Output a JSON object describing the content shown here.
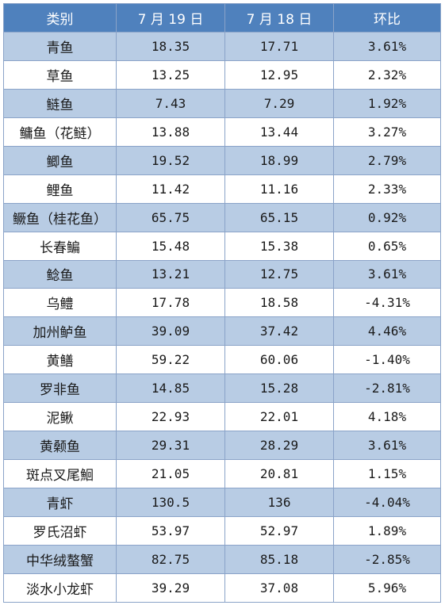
{
  "header": {
    "category": "类别",
    "date1": "7 月 19 日",
    "date2": "7 月 18 日",
    "change": "环比"
  },
  "rows": [
    {
      "name": "青鱼",
      "jul19": "18.35",
      "jul18": "17.71",
      "change": "3.61%"
    },
    {
      "name": "草鱼",
      "jul19": "13.25",
      "jul18": "12.95",
      "change": "2.32%"
    },
    {
      "name": "鲢鱼",
      "jul19": "7.43",
      "jul18": "7.29",
      "change": "1.92%"
    },
    {
      "name": "鳙鱼（花鲢）",
      "jul19": "13.88",
      "jul18": "13.44",
      "change": "3.27%"
    },
    {
      "name": "鲫鱼",
      "jul19": "19.52",
      "jul18": "18.99",
      "change": "2.79%"
    },
    {
      "name": "鲤鱼",
      "jul19": "11.42",
      "jul18": "11.16",
      "change": "2.33%"
    },
    {
      "name": "鳜鱼（桂花鱼）",
      "jul19": "65.75",
      "jul18": "65.15",
      "change": "0.92%"
    },
    {
      "name": "长春鳊",
      "jul19": "15.48",
      "jul18": "15.38",
      "change": "0.65%"
    },
    {
      "name": "鲶鱼",
      "jul19": "13.21",
      "jul18": "12.75",
      "change": "3.61%"
    },
    {
      "name": "乌鳢",
      "jul19": "17.78",
      "jul18": "18.58",
      "change": "-4.31%"
    },
    {
      "name": "加州鲈鱼",
      "jul19": "39.09",
      "jul18": "37.42",
      "change": "4.46%"
    },
    {
      "name": "黄鳝",
      "jul19": "59.22",
      "jul18": "60.06",
      "change": "-1.40%"
    },
    {
      "name": "罗非鱼",
      "jul19": "14.85",
      "jul18": "15.28",
      "change": "-2.81%"
    },
    {
      "name": "泥鳅",
      "jul19": "22.93",
      "jul18": "22.01",
      "change": "4.18%"
    },
    {
      "name": "黄颡鱼",
      "jul19": "29.31",
      "jul18": "28.29",
      "change": "3.61%"
    },
    {
      "name": "斑点叉尾鮰",
      "jul19": "21.05",
      "jul18": "20.81",
      "change": "1.15%"
    },
    {
      "name": "青虾",
      "jul19": "130.5",
      "jul18": "136",
      "change": "-4.04%"
    },
    {
      "name": "罗氏沼虾",
      "jul19": "53.97",
      "jul18": "52.97",
      "change": "1.89%"
    },
    {
      "name": "中华绒螯蟹",
      "jul19": "82.75",
      "jul18": "85.18",
      "change": "-2.85%"
    },
    {
      "name": "淡水小龙虾",
      "jul19": "39.29",
      "jul18": "37.08",
      "change": "5.96%"
    }
  ]
}
